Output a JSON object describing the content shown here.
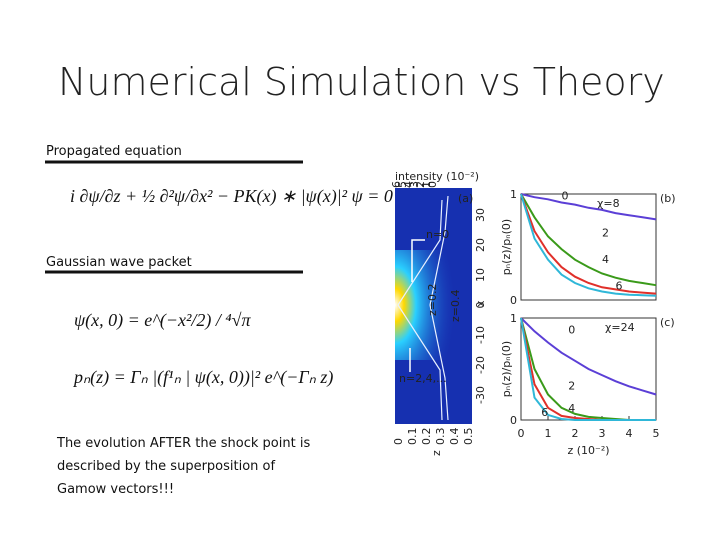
{
  "title": "Numerical Simulation vs Theory",
  "sections": [
    {
      "heading": "Propagated equation",
      "equations": [
        "i ∂ψ/∂z + ½ ∂²ψ/∂x² − PK(x) ∗ |ψ(x)|² ψ = 0"
      ]
    },
    {
      "heading": "Gaussian wave packet",
      "equations": [
        "ψ(x, 0) = e^(−x²/2) / ⁴√π",
        "pₙ(z) = Γₙ |(f¹ₙ | ψ(x, 0))|² e^(−Γₙ z)"
      ]
    }
  ],
  "note": [
    "The evolution AFTER the shock point is",
    "described by the superposition of",
    "Gamow vectors!!!"
  ],
  "figure": {
    "panel_a": {
      "tag": "(a)",
      "colorbar_label": "intensity (10⁻²)",
      "colorbar_ticks": [
        6,
        5,
        4,
        3,
        2,
        1,
        0
      ],
      "x_label": "x",
      "xticks": [
        30,
        20,
        10,
        0,
        -10,
        -20,
        -30
      ],
      "z_label": "z",
      "zticks": [
        0,
        0.1,
        0.2,
        0.3,
        0.4,
        0.5
      ],
      "annotations": [
        "n=0",
        "z=0.2",
        "z=0.4",
        "n=2,4,..."
      ]
    },
    "panels": [
      {
        "type": "line",
        "tag": "(b)",
        "chi": "χ=8",
        "y_label": "pₙ(z)/pₙ(0)",
        "xlim": [
          0,
          5
        ],
        "ylim": [
          0,
          1
        ],
        "yticks": [
          0,
          1
        ],
        "x": [
          0,
          0.5,
          1,
          1.5,
          2,
          2.5,
          3,
          3.5,
          4,
          4.5,
          5
        ],
        "series": [
          {
            "name": "0",
            "color": "#5b3fd6",
            "values": [
              1,
              0.97,
              0.95,
              0.92,
              0.9,
              0.87,
              0.85,
              0.82,
              0.8,
              0.78,
              0.76
            ]
          },
          {
            "name": "2",
            "color": "#3a9a1a",
            "values": [
              1,
              0.78,
              0.6,
              0.48,
              0.38,
              0.31,
              0.25,
              0.21,
              0.18,
              0.16,
              0.14
            ]
          },
          {
            "name": "4",
            "color": "#e0302a",
            "values": [
              1,
              0.65,
              0.45,
              0.31,
              0.22,
              0.16,
              0.12,
              0.1,
              0.08,
              0.07,
              0.06
            ]
          },
          {
            "name": "6",
            "color": "#2fb7d8",
            "values": [
              1,
              0.58,
              0.38,
              0.24,
              0.16,
              0.11,
              0.08,
              0.06,
              0.05,
              0.045,
              0.04
            ]
          }
        ]
      },
      {
        "type": "line",
        "tag": "(c)",
        "chi": "χ=24",
        "y_label": "pₙ(z)/pₙ(0)",
        "x_label": "z (10⁻²)",
        "xlim": [
          0,
          5
        ],
        "ylim": [
          0,
          1
        ],
        "yticks": [
          0,
          1
        ],
        "xticks": [
          0,
          1,
          2,
          3,
          4,
          5
        ],
        "x": [
          0,
          0.5,
          1,
          1.5,
          2,
          2.5,
          3,
          3.5,
          4,
          4.5,
          5
        ],
        "series": [
          {
            "name": "0",
            "color": "#5b3fd6",
            "values": [
              1,
              0.87,
              0.76,
              0.66,
              0.58,
              0.5,
              0.44,
              0.38,
              0.33,
              0.29,
              0.25
            ]
          },
          {
            "name": "2",
            "color": "#3a9a1a",
            "values": [
              1,
              0.5,
              0.25,
              0.12,
              0.06,
              0.03,
              0.02,
              0.01,
              0,
              0,
              0
            ]
          },
          {
            "name": "4",
            "color": "#e0302a",
            "values": [
              1,
              0.35,
              0.12,
              0.04,
              0.02,
              0.01,
              0,
              0,
              0,
              0,
              0
            ]
          },
          {
            "name": "6",
            "color": "#2fb7d8",
            "values": [
              1,
              0.22,
              0.05,
              0.01,
              0,
              0,
              0,
              0,
              0,
              0,
              0
            ]
          }
        ]
      }
    ]
  }
}
